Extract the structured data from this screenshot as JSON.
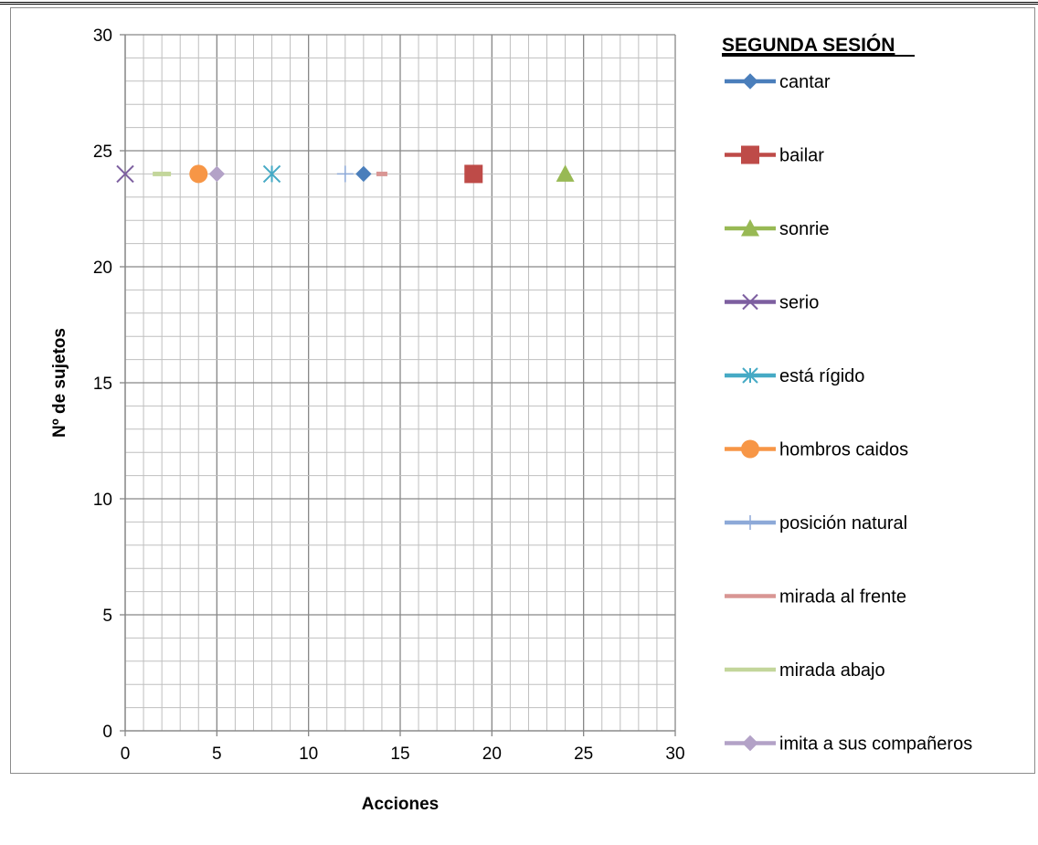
{
  "chart_data": {
    "type": "scatter",
    "legend_title": "SEGUNDA SESIÓN",
    "xlabel": "Acciones",
    "ylabel": "Nº de sujetos",
    "xlim": [
      0,
      30
    ],
    "ylim": [
      0,
      30
    ],
    "x_ticks": [
      "0",
      "5",
      "10",
      "15",
      "20",
      "25",
      "30"
    ],
    "y_ticks": [
      "0",
      "5",
      "10",
      "15",
      "20",
      "25",
      "30"
    ],
    "grid": true,
    "legend_position": "right",
    "series": [
      {
        "name": "cantar",
        "x": 13,
        "y": 24,
        "color": "#4a7ebb",
        "marker": "diamond"
      },
      {
        "name": "bailar",
        "x": 19,
        "y": 24,
        "color": "#be4b48",
        "marker": "square"
      },
      {
        "name": "sonrie",
        "x": 24,
        "y": 24,
        "color": "#98b954",
        "marker": "triangle"
      },
      {
        "name": "serio",
        "x": 0,
        "y": 24,
        "color": "#7d5fa0",
        "marker": "x"
      },
      {
        "name": "está rígido",
        "x": 8,
        "y": 24,
        "color": "#46aac5",
        "marker": "star"
      },
      {
        "name": "hombros caidos",
        "x": 4,
        "y": 24,
        "color": "#f79646",
        "marker": "circle"
      },
      {
        "name": "posición natural",
        "x": 12,
        "y": 24,
        "color": "#8da9d8",
        "marker": "plus"
      },
      {
        "name": "mirada al frente",
        "x": 14,
        "y": 24,
        "color": "#d99694",
        "marker": "dash"
      },
      {
        "name": "mirada abajo",
        "x": 2,
        "y": 24,
        "color": "#c3d69b",
        "marker": "dash"
      },
      {
        "name": "imita a sus compañeros",
        "x": 5,
        "y": 24,
        "color": "#b3a2c7",
        "marker": "diamond"
      }
    ]
  }
}
